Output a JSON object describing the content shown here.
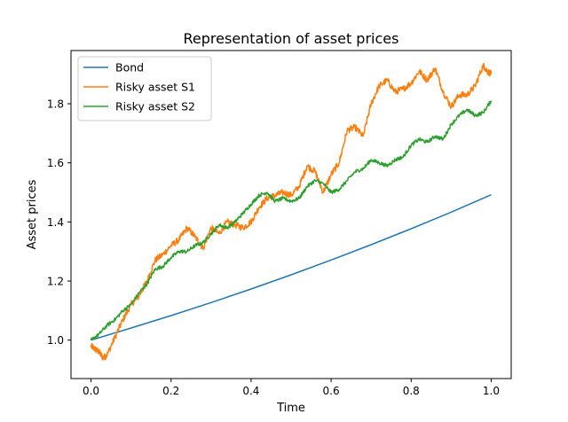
{
  "chart_data": {
    "type": "line",
    "title": "Representation of asset prices",
    "xlabel": "Time",
    "ylabel": "Asset prices",
    "xlim": [
      -0.05,
      1.05
    ],
    "ylim": [
      0.87,
      1.98
    ],
    "xticks": [
      0.0,
      0.2,
      0.4,
      0.6,
      0.8,
      1.0
    ],
    "xtick_labels": [
      "0.0",
      "0.2",
      "0.4",
      "0.6",
      "0.8",
      "1.0"
    ],
    "yticks": [
      1.0,
      1.2,
      1.4,
      1.6,
      1.8
    ],
    "ytick_labels": [
      "1.0",
      "1.2",
      "1.4",
      "1.6",
      "1.8"
    ],
    "grid": false,
    "legend_position": "top-left",
    "series": [
      {
        "name": "Bond",
        "color": "#1f77b4",
        "x": [
          0.0,
          0.1,
          0.2,
          0.3,
          0.4,
          0.5,
          0.6,
          0.7,
          0.8,
          0.9,
          1.0
        ],
        "y": [
          1.0,
          1.041,
          1.083,
          1.127,
          1.173,
          1.221,
          1.271,
          1.323,
          1.377,
          1.433,
          1.492
        ]
      },
      {
        "name": "Risky asset S1",
        "color": "#ff7f0e",
        "x": [
          0.0,
          0.01,
          0.02,
          0.03,
          0.04,
          0.06,
          0.08,
          0.1,
          0.12,
          0.14,
          0.16,
          0.18,
          0.2,
          0.22,
          0.24,
          0.26,
          0.28,
          0.3,
          0.32,
          0.34,
          0.36,
          0.38,
          0.4,
          0.42,
          0.44,
          0.46,
          0.48,
          0.5,
          0.52,
          0.54,
          0.56,
          0.58,
          0.6,
          0.62,
          0.64,
          0.66,
          0.68,
          0.7,
          0.72,
          0.74,
          0.76,
          0.78,
          0.8,
          0.82,
          0.84,
          0.86,
          0.88,
          0.9,
          0.92,
          0.94,
          0.96,
          0.98,
          0.99,
          1.0
        ],
        "y": [
          0.98,
          0.97,
          0.96,
          0.94,
          0.95,
          1.01,
          1.07,
          1.12,
          1.15,
          1.2,
          1.27,
          1.29,
          1.32,
          1.34,
          1.38,
          1.35,
          1.31,
          1.38,
          1.36,
          1.4,
          1.39,
          1.38,
          1.4,
          1.45,
          1.48,
          1.49,
          1.5,
          1.49,
          1.52,
          1.59,
          1.57,
          1.5,
          1.56,
          1.6,
          1.71,
          1.72,
          1.69,
          1.8,
          1.86,
          1.88,
          1.84,
          1.85,
          1.87,
          1.91,
          1.88,
          1.92,
          1.84,
          1.79,
          1.83,
          1.83,
          1.86,
          1.93,
          1.91,
          1.9
        ]
      },
      {
        "name": "Risky asset S2",
        "color": "#2ca02c",
        "x": [
          0.0,
          0.02,
          0.04,
          0.06,
          0.08,
          0.1,
          0.12,
          0.14,
          0.16,
          0.18,
          0.2,
          0.22,
          0.24,
          0.26,
          0.28,
          0.3,
          0.32,
          0.34,
          0.36,
          0.38,
          0.4,
          0.42,
          0.44,
          0.46,
          0.48,
          0.5,
          0.52,
          0.54,
          0.56,
          0.58,
          0.6,
          0.62,
          0.64,
          0.66,
          0.68,
          0.7,
          0.72,
          0.74,
          0.76,
          0.78,
          0.8,
          0.82,
          0.84,
          0.86,
          0.88,
          0.9,
          0.92,
          0.94,
          0.96,
          0.98,
          1.0
        ],
        "y": [
          1.0,
          1.02,
          1.05,
          1.07,
          1.1,
          1.12,
          1.16,
          1.19,
          1.24,
          1.25,
          1.28,
          1.3,
          1.3,
          1.32,
          1.33,
          1.36,
          1.39,
          1.38,
          1.4,
          1.43,
          1.46,
          1.49,
          1.5,
          1.47,
          1.48,
          1.47,
          1.48,
          1.52,
          1.54,
          1.53,
          1.5,
          1.51,
          1.54,
          1.57,
          1.58,
          1.61,
          1.6,
          1.59,
          1.61,
          1.62,
          1.66,
          1.68,
          1.67,
          1.69,
          1.68,
          1.73,
          1.76,
          1.78,
          1.76,
          1.77,
          1.81
        ]
      }
    ]
  }
}
